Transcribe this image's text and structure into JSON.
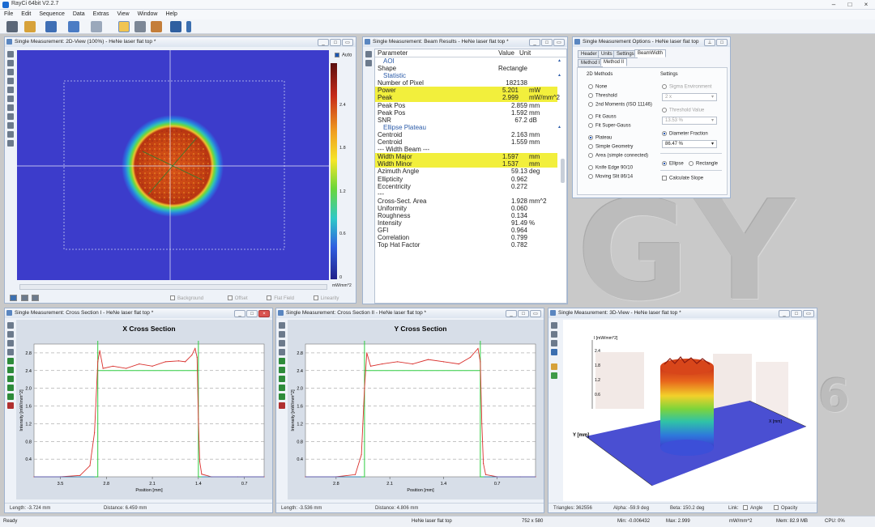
{
  "app": {
    "title": "RayCi 64bit V2.2.7"
  },
  "menu": [
    "File",
    "Edit",
    "Sequence",
    "Data",
    "Extras",
    "View",
    "Window",
    "Help"
  ],
  "background_text": [
    "GY",
    "6"
  ],
  "view2d": {
    "title": "Single Measurement: 2D-View (100%) - HeNe laser flat top *",
    "auto_label": "Auto",
    "colorbar_ticks": [
      "2.4",
      "1.8",
      "1.2",
      "0.6",
      "0"
    ],
    "colorbar_unit": "mW/mm^2",
    "checkboxes": [
      "Background",
      "Offset",
      "Flat Field",
      "Linearity"
    ]
  },
  "results": {
    "title": "Single Measurement: Beam Results - HeNe laser flat top *",
    "col_param": "Parameter",
    "col_value": "Value",
    "col_unit": "Unit",
    "rows": [
      {
        "p": "AOI",
        "v": "",
        "u": "",
        "g": true
      },
      {
        "p": "Shape",
        "v": "Rectangle",
        "u": ""
      },
      {
        "p": "Statistic",
        "v": "",
        "u": "",
        "g": true
      },
      {
        "p": "Number of Pixel",
        "v": "182138",
        "u": ""
      },
      {
        "p": "Power",
        "v": "5.201",
        "u": "mW",
        "hl": true
      },
      {
        "p": "Peak",
        "v": "2.999",
        "u": "mW/mm^2",
        "hl": true
      },
      {
        "p": "Peak Pos",
        "v": "2.859",
        "u": "mm"
      },
      {
        "p": "Peak Pos",
        "v": "1.592",
        "u": "mm"
      },
      {
        "p": "SNR",
        "v": "67.2",
        "u": "dB"
      },
      {
        "p": "Ellipse Plateau",
        "v": "",
        "u": "",
        "g": true
      },
      {
        "p": "Centroid",
        "v": "2.163",
        "u": "mm"
      },
      {
        "p": "Centroid",
        "v": "1.559",
        "u": "mm"
      },
      {
        "p": "--- Width Beam ---",
        "v": "",
        "u": ""
      },
      {
        "p": "Width Major",
        "v": "1.597",
        "u": "mm",
        "hl": true
      },
      {
        "p": "Width Minor",
        "v": "1.537",
        "u": "mm",
        "hl": true
      },
      {
        "p": "Azimuth Angle",
        "v": "59.13",
        "u": "deg"
      },
      {
        "p": "Ellipticity",
        "v": "0.962",
        "u": ""
      },
      {
        "p": "Eccentricity",
        "v": "0.272",
        "u": ""
      },
      {
        "p": "---",
        "v": "",
        "u": ""
      },
      {
        "p": "Cross-Sect. Area",
        "v": "1.928",
        "u": "mm^2"
      },
      {
        "p": "Uniformity",
        "v": "0.060",
        "u": ""
      },
      {
        "p": "Roughness",
        "v": "0.134",
        "u": ""
      },
      {
        "p": "Intensity",
        "v": "91.49",
        "u": "%"
      },
      {
        "p": "GFI",
        "v": "0.964",
        "u": ""
      },
      {
        "p": "Correlation",
        "v": "0.799",
        "u": ""
      },
      {
        "p": "Top Hat Factor",
        "v": "0.782",
        "u": ""
      }
    ]
  },
  "options": {
    "title": "Single Measurement Options - HeNe laser flat top",
    "tabs_top": [
      "Header",
      "Units",
      "Settings",
      "BeamWidth"
    ],
    "tabs_sub": [
      "Method I",
      "Method II"
    ],
    "methods_title": "2D Methods",
    "settings_title": "Settings",
    "methods": [
      "None",
      "Threshold",
      "2nd Moments (ISO 11146)",
      "Fit Gauss",
      "Fit Super-Gauss",
      "Plateau",
      "Simple Geometry",
      "Area (simple connected)",
      "Knife Edge 90/10",
      "Moving Slit 86/14"
    ],
    "sigma_env": "Sigma Environment",
    "sigma_val": "2 x",
    "threshold_value": "Threshold Value",
    "threshold_val": "13.53 %",
    "diameter_fraction": "Diameter Fraction",
    "diameter_val": "86.47 %",
    "ellipse": "Ellipse",
    "rectangle": "Rectangle",
    "calc_slope": "Calculate Slope"
  },
  "xsec": {
    "title": "Single Measurement: Cross Section I - HeNe laser flat top *",
    "chart_title": "X Cross Section",
    "ylabel": "Intensity [mW/mm^2]",
    "xlabel": "Position [mm]",
    "yticks": [
      "2.8",
      "2.4",
      "2.0",
      "1.6",
      "1.2",
      "0.8",
      "0.4"
    ],
    "xticks": [
      "3.5",
      "2.8",
      "2.1",
      "1.4",
      "0.7"
    ],
    "length_label": "Length: -3.724 mm",
    "distance_label": "Distance: 6.459 mm"
  },
  "ysec": {
    "title": "Single Measurement: Cross Section II - HeNe laser flat top *",
    "chart_title": "Y Cross Section",
    "ylabel": "Intensity [mW/mm^2]",
    "xlabel": "Position [mm]",
    "yticks": [
      "2.8",
      "2.4",
      "2.0",
      "1.6",
      "1.2",
      "0.8",
      "0.4"
    ],
    "xticks": [
      "2.8",
      "2.1",
      "1.4",
      "0.7"
    ],
    "length_label": "Length: -3.536 mm",
    "distance_label": "Distance: 4.806 mm"
  },
  "view3d": {
    "title": "Single Measurement: 3D-View - HeNe laser flat top *",
    "zunit": "I [mW/mm^2]",
    "zticks": [
      "2.4",
      "1.8",
      "1.2",
      "0.6"
    ],
    "x_axis": "X [mm]",
    "y_axis": "Y [mm]",
    "triangles": "Triangles: 362556",
    "alpha": "Alpha: -59.9 deg",
    "beta": "Beta: 150.2 deg",
    "link": "Link:",
    "angle": "Angle",
    "opacity": "Opacity"
  },
  "status": {
    "ready": "Ready",
    "name": "HeNe laser flat top",
    "dims": "752 x 580",
    "min": "Min: -0.006432",
    "max": "Max: 2.999",
    "unit": "mW/mm^2",
    "mem": "Mem: 82.9 MB",
    "cpu": "CPU: 0%"
  },
  "chart_data": [
    {
      "type": "line",
      "title": "X Cross Section",
      "xlabel": "Position [mm]",
      "ylabel": "Intensity [mW/mm^2]",
      "xlim": [
        3.9,
        0.4
      ],
      "ylim": [
        0,
        3.0
      ],
      "series": [
        {
          "x": [
            3.9,
            3.5,
            3.2,
            3.05,
            2.98,
            2.93,
            2.9,
            2.85,
            2.7,
            2.5,
            2.3,
            2.1,
            1.9,
            1.7,
            1.6,
            1.5,
            1.45,
            1.42,
            1.4,
            1.38,
            1.35,
            1.2,
            0.8,
            0.4
          ],
          "y": [
            0.0,
            0.0,
            0.03,
            0.25,
            1.0,
            2.6,
            2.85,
            2.45,
            2.5,
            2.45,
            2.55,
            2.5,
            2.6,
            2.62,
            2.6,
            2.75,
            2.9,
            2.7,
            1.3,
            0.35,
            0.06,
            0.0,
            0.0,
            0.0
          ]
        }
      ]
    },
    {
      "type": "line",
      "title": "Y Cross Section",
      "xlabel": "Position [mm]",
      "ylabel": "Intensity [mW/mm^2]",
      "xlim": [
        3.2,
        0.2
      ],
      "ylim": [
        0,
        3.0
      ],
      "series": [
        {
          "x": [
            3.2,
            2.8,
            2.55,
            2.47,
            2.43,
            2.4,
            2.35,
            2.2,
            2.0,
            1.8,
            1.6,
            1.4,
            1.2,
            1.05,
            0.95,
            0.92,
            0.9,
            0.88,
            0.85,
            0.7,
            0.4,
            0.2
          ],
          "y": [
            0.0,
            0.0,
            0.05,
            0.5,
            2.0,
            2.8,
            2.5,
            2.55,
            2.6,
            2.55,
            2.65,
            2.6,
            2.55,
            2.7,
            2.9,
            2.6,
            1.2,
            0.3,
            0.05,
            0.0,
            0.0,
            0.0
          ]
        }
      ]
    }
  ]
}
